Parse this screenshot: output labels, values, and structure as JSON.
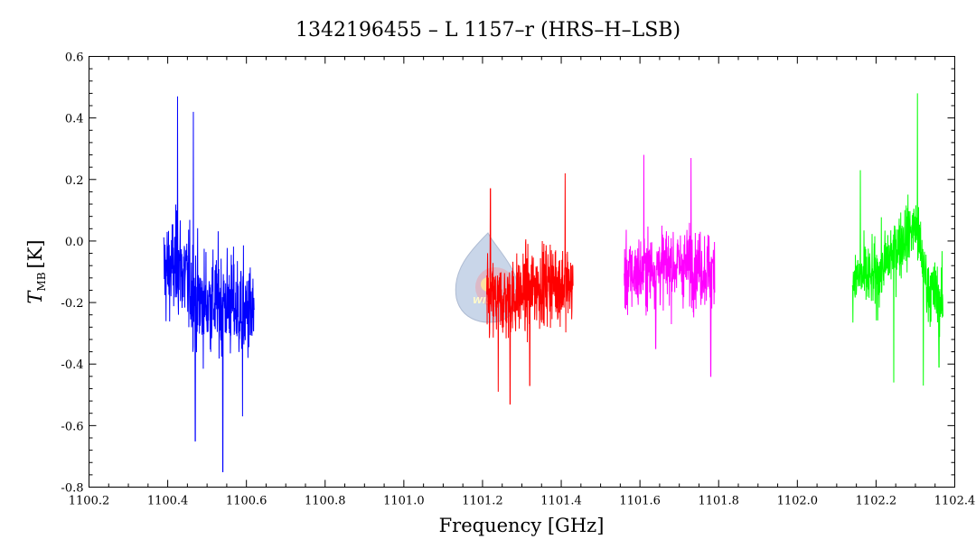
{
  "chart_data": {
    "type": "line",
    "title": "1342196455 – L 1157–r (HRS–H–LSB)",
    "xlabel": "Frequency [GHz]",
    "ylabel_main": "T",
    "ylabel_sub": "MB",
    "ylabel_unit": "[K]",
    "xlim": [
      1100.2,
      1102.4
    ],
    "ylim": [
      -0.8,
      0.6
    ],
    "x_ticks": [
      "1100.2",
      "1100.4",
      "1100.6",
      "1100.8",
      "1101.0",
      "1101.2",
      "1101.4",
      "1101.6",
      "1101.8",
      "1102.0",
      "1102.2",
      "1102.4"
    ],
    "y_ticks": [
      "-0.8",
      "-0.6",
      "-0.4",
      "-0.2",
      "0.0",
      "0.2",
      "0.4",
      "0.6"
    ],
    "grid": false,
    "legend": "none",
    "watermark": "WISH",
    "series": [
      {
        "color": "#0000ff",
        "x_range": [
          1100.39,
          1100.62
        ],
        "profile": [
          [
            1100.39,
            -0.1
          ],
          [
            1100.43,
            -0.08
          ],
          [
            1100.48,
            -0.2
          ],
          [
            1100.55,
            -0.2
          ],
          [
            1100.62,
            -0.25
          ]
        ],
        "spread": 0.14,
        "extremes": [
          [
            1100.425,
            0.47
          ],
          [
            1100.465,
            0.42
          ],
          [
            1100.47,
            -0.65
          ],
          [
            1100.54,
            -0.75
          ],
          [
            1100.59,
            -0.57
          ]
        ]
      },
      {
        "color": "#ff0000",
        "x_range": [
          1101.21,
          1101.43
        ],
        "profile": [
          [
            1101.21,
            -0.2
          ],
          [
            1101.27,
            -0.19
          ],
          [
            1101.33,
            -0.15
          ],
          [
            1101.38,
            -0.13
          ],
          [
            1101.43,
            -0.15
          ]
        ],
        "spread": 0.11,
        "extremes": [
          [
            1101.22,
            0.17
          ],
          [
            1101.27,
            -0.53
          ],
          [
            1101.32,
            -0.47
          ],
          [
            1101.41,
            0.22
          ],
          [
            1101.24,
            -0.49
          ]
        ]
      },
      {
        "color": "#ff00ff",
        "x_range": [
          1101.56,
          1101.79
        ],
        "profile": [
          [
            1101.56,
            -0.12
          ],
          [
            1101.65,
            -0.08
          ],
          [
            1101.72,
            -0.08
          ],
          [
            1101.79,
            -0.1
          ]
        ],
        "spread": 0.1,
        "extremes": [
          [
            1101.61,
            0.28
          ],
          [
            1101.73,
            0.27
          ],
          [
            1101.78,
            -0.44
          ],
          [
            1101.64,
            -0.35
          ]
        ]
      },
      {
        "color": "#00ff00",
        "x_range": [
          1102.14,
          1102.37
        ],
        "profile": [
          [
            1102.14,
            -0.12
          ],
          [
            1102.2,
            -0.12
          ],
          [
            1102.25,
            -0.02
          ],
          [
            1102.3,
            0.05
          ],
          [
            1102.33,
            -0.15
          ],
          [
            1102.37,
            -0.2
          ]
        ],
        "spread": 0.09,
        "extremes": [
          [
            1102.305,
            0.48
          ],
          [
            1102.32,
            -0.47
          ],
          [
            1102.245,
            -0.46
          ],
          [
            1102.16,
            0.23
          ],
          [
            1102.36,
            -0.41
          ]
        ]
      }
    ]
  }
}
